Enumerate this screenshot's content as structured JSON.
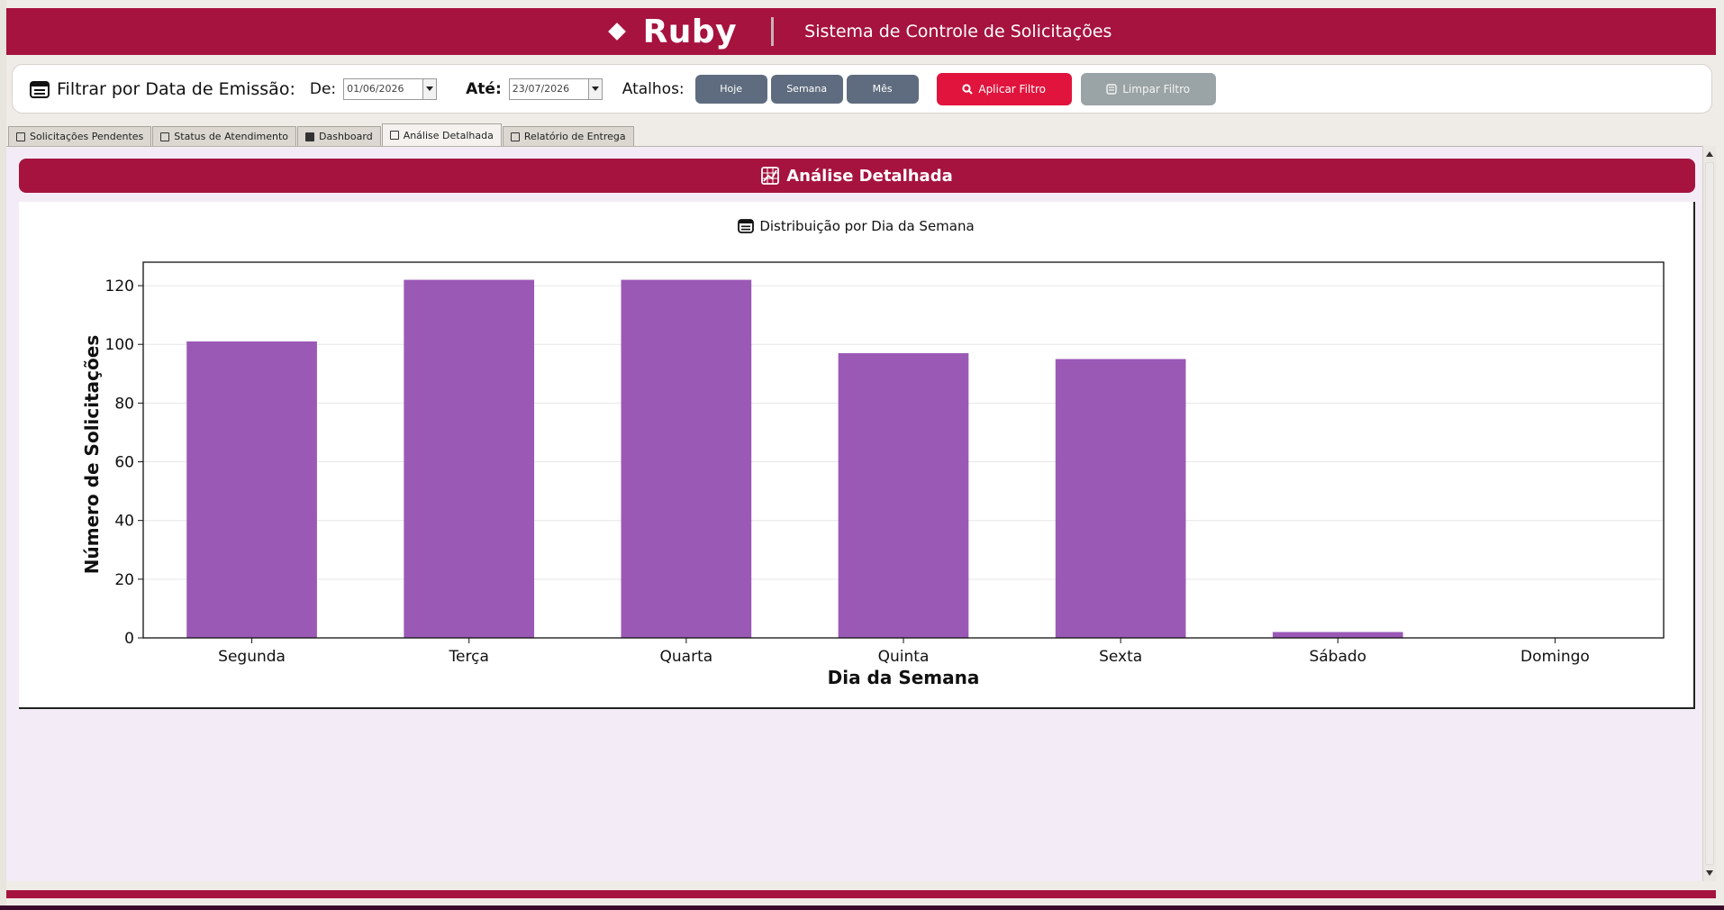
{
  "header": {
    "brand_name": "Ruby",
    "subtitle": "Sistema de Controle de Solicitações"
  },
  "filter": {
    "title": "Filtrar por Data de Emissão:",
    "from_label": "De:",
    "from_value": "01/06/2026",
    "to_label": "Até:",
    "to_value": "23/07/2026",
    "shortcuts_label": "Atalhos:",
    "shortcuts": [
      "Hoje",
      "Semana",
      "Mês"
    ],
    "apply_label": "Aplicar Filtro",
    "clear_label": "Limpar Filtro"
  },
  "tabs": [
    {
      "label": "Solicitações Pendentes",
      "active": false
    },
    {
      "label": "Status de Atendimento",
      "active": false
    },
    {
      "label": "Dashboard",
      "active": false
    },
    {
      "label": "Análise Detalhada",
      "active": true
    },
    {
      "label": "Relatório de Entrega",
      "active": false
    }
  ],
  "section": {
    "title": "Análise Detalhada"
  },
  "chart_title": "Distribuição por Dia da Semana",
  "colors": {
    "brand": "#a6133f",
    "accent": "#e0143c",
    "bar": "#9b59b6",
    "shortcut": "#5f6c7f",
    "clear": "#9aa3a5",
    "panel_bg": "#f3ecf6"
  },
  "chart_data": {
    "type": "bar",
    "title": "Distribuição por Dia da Semana",
    "categories": [
      "Segunda",
      "Terça",
      "Quarta",
      "Quinta",
      "Sexta",
      "Sábado",
      "Domingo"
    ],
    "values": [
      101,
      122,
      122,
      97,
      95,
      2,
      0
    ],
    "xlabel": "Dia da Semana",
    "ylabel": "Número de Solicitações",
    "ylim": [
      0,
      128
    ],
    "yticks": [
      0,
      20,
      40,
      60,
      80,
      100,
      120
    ],
    "grid": true,
    "legend": "none"
  }
}
